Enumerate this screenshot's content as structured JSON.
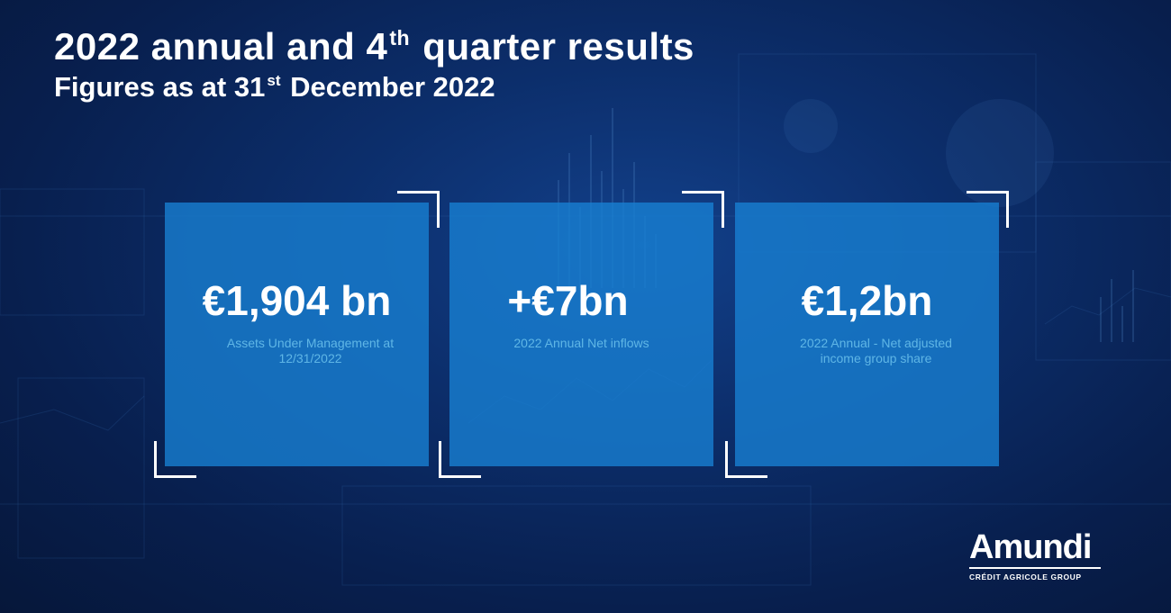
{
  "header": {
    "title_a": "2022 annual and 4",
    "title_sup": "th",
    "title_b": " quarter results",
    "subtitle_a": "Figures as at 31",
    "subtitle_sup": "st",
    "subtitle_b": " December 2022"
  },
  "cards": [
    {
      "value": "€1,904 bn",
      "label": "Assets Under Management at 12/31/2022"
    },
    {
      "value": "+€7bn",
      "label": "2022 Annual Net inflows"
    },
    {
      "value": "€1,2bn",
      "label": "2022 Annual - Net adjusted income group share"
    }
  ],
  "logo": {
    "name": "Amundi",
    "tagline": "CRÉDIT AGRICOLE GROUP"
  },
  "colors": {
    "background": "#0c2e6b",
    "card": "#1880d2",
    "label": "#5fb6e6"
  }
}
